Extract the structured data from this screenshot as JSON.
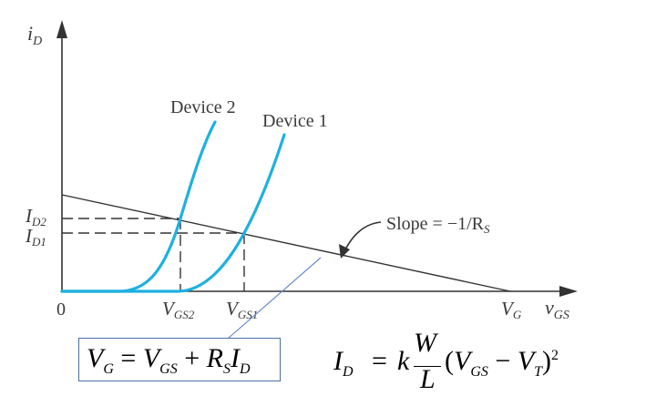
{
  "axes": {
    "y_label": "iD",
    "x_label": "vGS",
    "origin": "0"
  },
  "curves": [
    {
      "name": "Device 2",
      "color": "#1eb0e0"
    },
    {
      "name": "Device 1",
      "color": "#1eb0e0"
    }
  ],
  "load_line": {
    "annotation": "Slope = −1/R",
    "annotation_sub": "S",
    "x_intercept_label": "V",
    "x_intercept_sub": "G"
  },
  "ticks": {
    "y": [
      {
        "main": "I",
        "sub": "D2"
      },
      {
        "main": "I",
        "sub": "D1"
      }
    ],
    "x": [
      {
        "main": "V",
        "sub": "GS2"
      },
      {
        "main": "V",
        "sub": "GS1"
      }
    ]
  },
  "equations": {
    "boxed": "V_G = V_GS + R_S I_D",
    "square_law": "I_D = k (W/L) (V_GS − V_T)^2"
  },
  "colors": {
    "curve": "#1eb0e0",
    "line": "#333333",
    "box_border": "#4a6fa5",
    "pointer": "#6a8cc8"
  }
}
